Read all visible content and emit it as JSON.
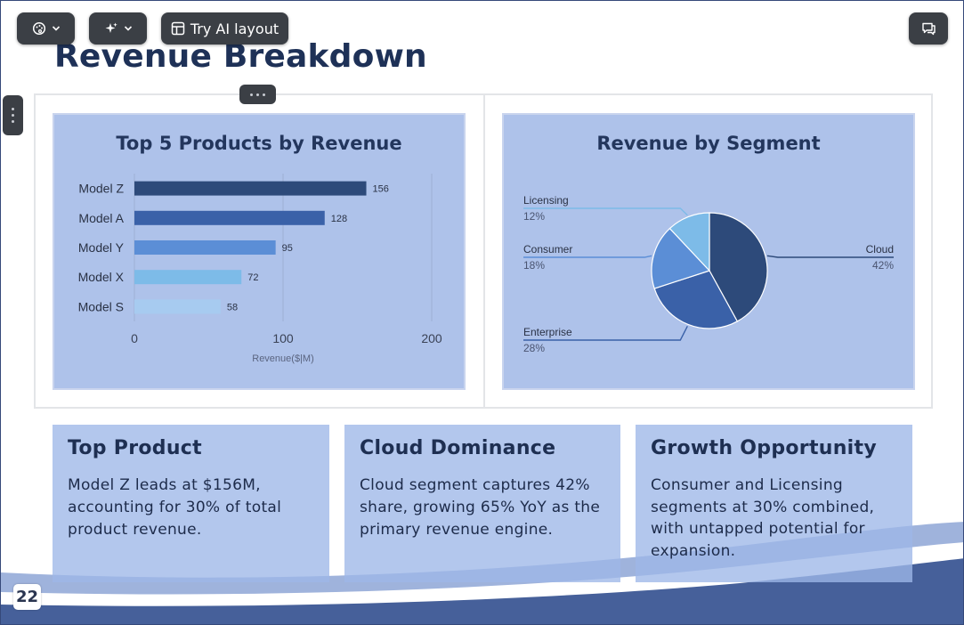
{
  "slide": {
    "title": "Revenue Breakdown",
    "page_number": "22"
  },
  "toolbar": {
    "palette_icon": "palette-icon",
    "magic_icon": "sparkles-icon",
    "ai_layout_icon": "layout-icon",
    "ai_layout_label": "Try AI layout",
    "comment_icon": "comment-icon"
  },
  "bar_chart": {
    "title": "Top 5 Products by Revenue",
    "xlabel": "Revenue($|M)"
  },
  "pie_chart": {
    "title": "Revenue by Segment"
  },
  "chart_data": [
    {
      "type": "bar",
      "orientation": "horizontal",
      "title": "Top 5 Products by Revenue",
      "categories": [
        "Model Z",
        "Model A",
        "Model Y",
        "Model X",
        "Model S"
      ],
      "values": [
        156,
        128,
        95,
        72,
        58
      ],
      "colors": [
        "#2d4a7a",
        "#3a61a8",
        "#5b8ed6",
        "#7dbbe8",
        "#a7cbf0"
      ],
      "xlabel": "Revenue($|M)",
      "ylabel": "",
      "xlim": [
        0,
        200
      ],
      "xticks": [
        "0",
        "100",
        "200"
      ],
      "grid": true,
      "data_labels": [
        "156",
        "128",
        "95",
        "72",
        "58"
      ]
    },
    {
      "type": "pie",
      "title": "Revenue by Segment",
      "labels": [
        "Cloud",
        "Enterprise",
        "Consumer",
        "Licensing"
      ],
      "values": [
        42,
        28,
        18,
        12
      ],
      "value_labels": [
        "42%",
        "28%",
        "18%",
        "12%"
      ],
      "colors": [
        "#2d4a7a",
        "#3a61a8",
        "#5b8ed6",
        "#7dbbe8"
      ]
    }
  ],
  "cards": [
    {
      "title": "Top Product",
      "lines": [
        "Model Z leads at $156M,",
        "accounting for 30% of total",
        "product revenue."
      ]
    },
    {
      "title": "Cloud Dominance",
      "lines": [
        "Cloud segment captures 42%",
        "share, growing 65% YoY as the",
        "primary revenue engine."
      ]
    },
    {
      "title": "Growth Opportunity",
      "lines": [
        "Consumer and Licensing",
        "segments at 30% combined,",
        "with untapped potential for",
        "expansion."
      ]
    }
  ]
}
